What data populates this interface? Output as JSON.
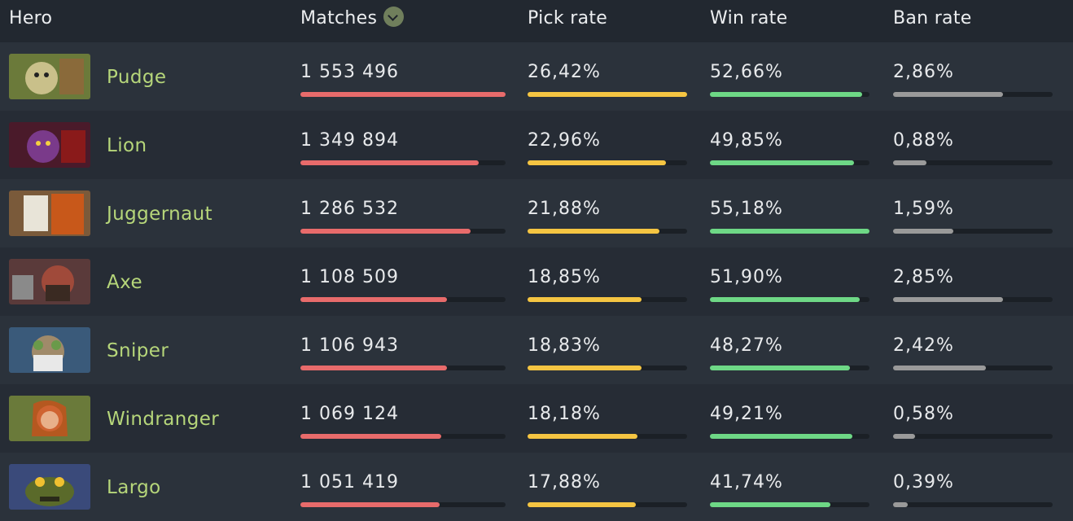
{
  "header": {
    "hero": "Hero",
    "matches": "Matches",
    "pick_rate": "Pick rate",
    "win_rate": "Win rate",
    "ban_rate": "Ban rate",
    "sort_icon": "chevron-down-icon"
  },
  "colors": {
    "hero_name": "#b6d67a",
    "matches_bar": "#e86b6b",
    "pick_bar": "#f5c542",
    "win_bar": "#6ed886",
    "ban_bar": "#9a9a9a",
    "track": "#1b2026"
  },
  "rows": [
    {
      "name": "Pudge",
      "matches": "1 553 496",
      "pick": "26,42%",
      "win": "52,66%",
      "ban": "2,86%",
      "matches_fill": 1.0,
      "pick_fill": 1.0,
      "win_fill": 0.954,
      "ban_fill": 0.69
    },
    {
      "name": "Lion",
      "matches": "1 349 894",
      "pick": "22,96%",
      "win": "49,85%",
      "ban": "0,88%",
      "matches_fill": 0.869,
      "pick_fill": 0.869,
      "win_fill": 0.903,
      "ban_fill": 0.21
    },
    {
      "name": "Juggernaut",
      "matches": "1 286 532",
      "pick": "21,88%",
      "win": "55,18%",
      "ban": "1,59%",
      "matches_fill": 0.828,
      "pick_fill": 0.828,
      "win_fill": 1.0,
      "ban_fill": 0.38
    },
    {
      "name": "Axe",
      "matches": "1 108 509",
      "pick": "18,85%",
      "win": "51,90%",
      "ban": "2,85%",
      "matches_fill": 0.714,
      "pick_fill": 0.714,
      "win_fill": 0.941,
      "ban_fill": 0.69
    },
    {
      "name": "Sniper",
      "matches": "1 106 943",
      "pick": "18,83%",
      "win": "48,27%",
      "ban": "2,42%",
      "matches_fill": 0.713,
      "pick_fill": 0.713,
      "win_fill": 0.875,
      "ban_fill": 0.58
    },
    {
      "name": "Windranger",
      "matches": "1 069 124",
      "pick": "18,18%",
      "win": "49,21%",
      "ban": "0,58%",
      "matches_fill": 0.688,
      "pick_fill": 0.688,
      "win_fill": 0.892,
      "ban_fill": 0.14
    },
    {
      "name": "Largo",
      "matches": "1 051 419",
      "pick": "17,88%",
      "win": "41,74%",
      "ban": "0,39%",
      "matches_fill": 0.677,
      "pick_fill": 0.677,
      "win_fill": 0.756,
      "ban_fill": 0.09
    }
  ]
}
